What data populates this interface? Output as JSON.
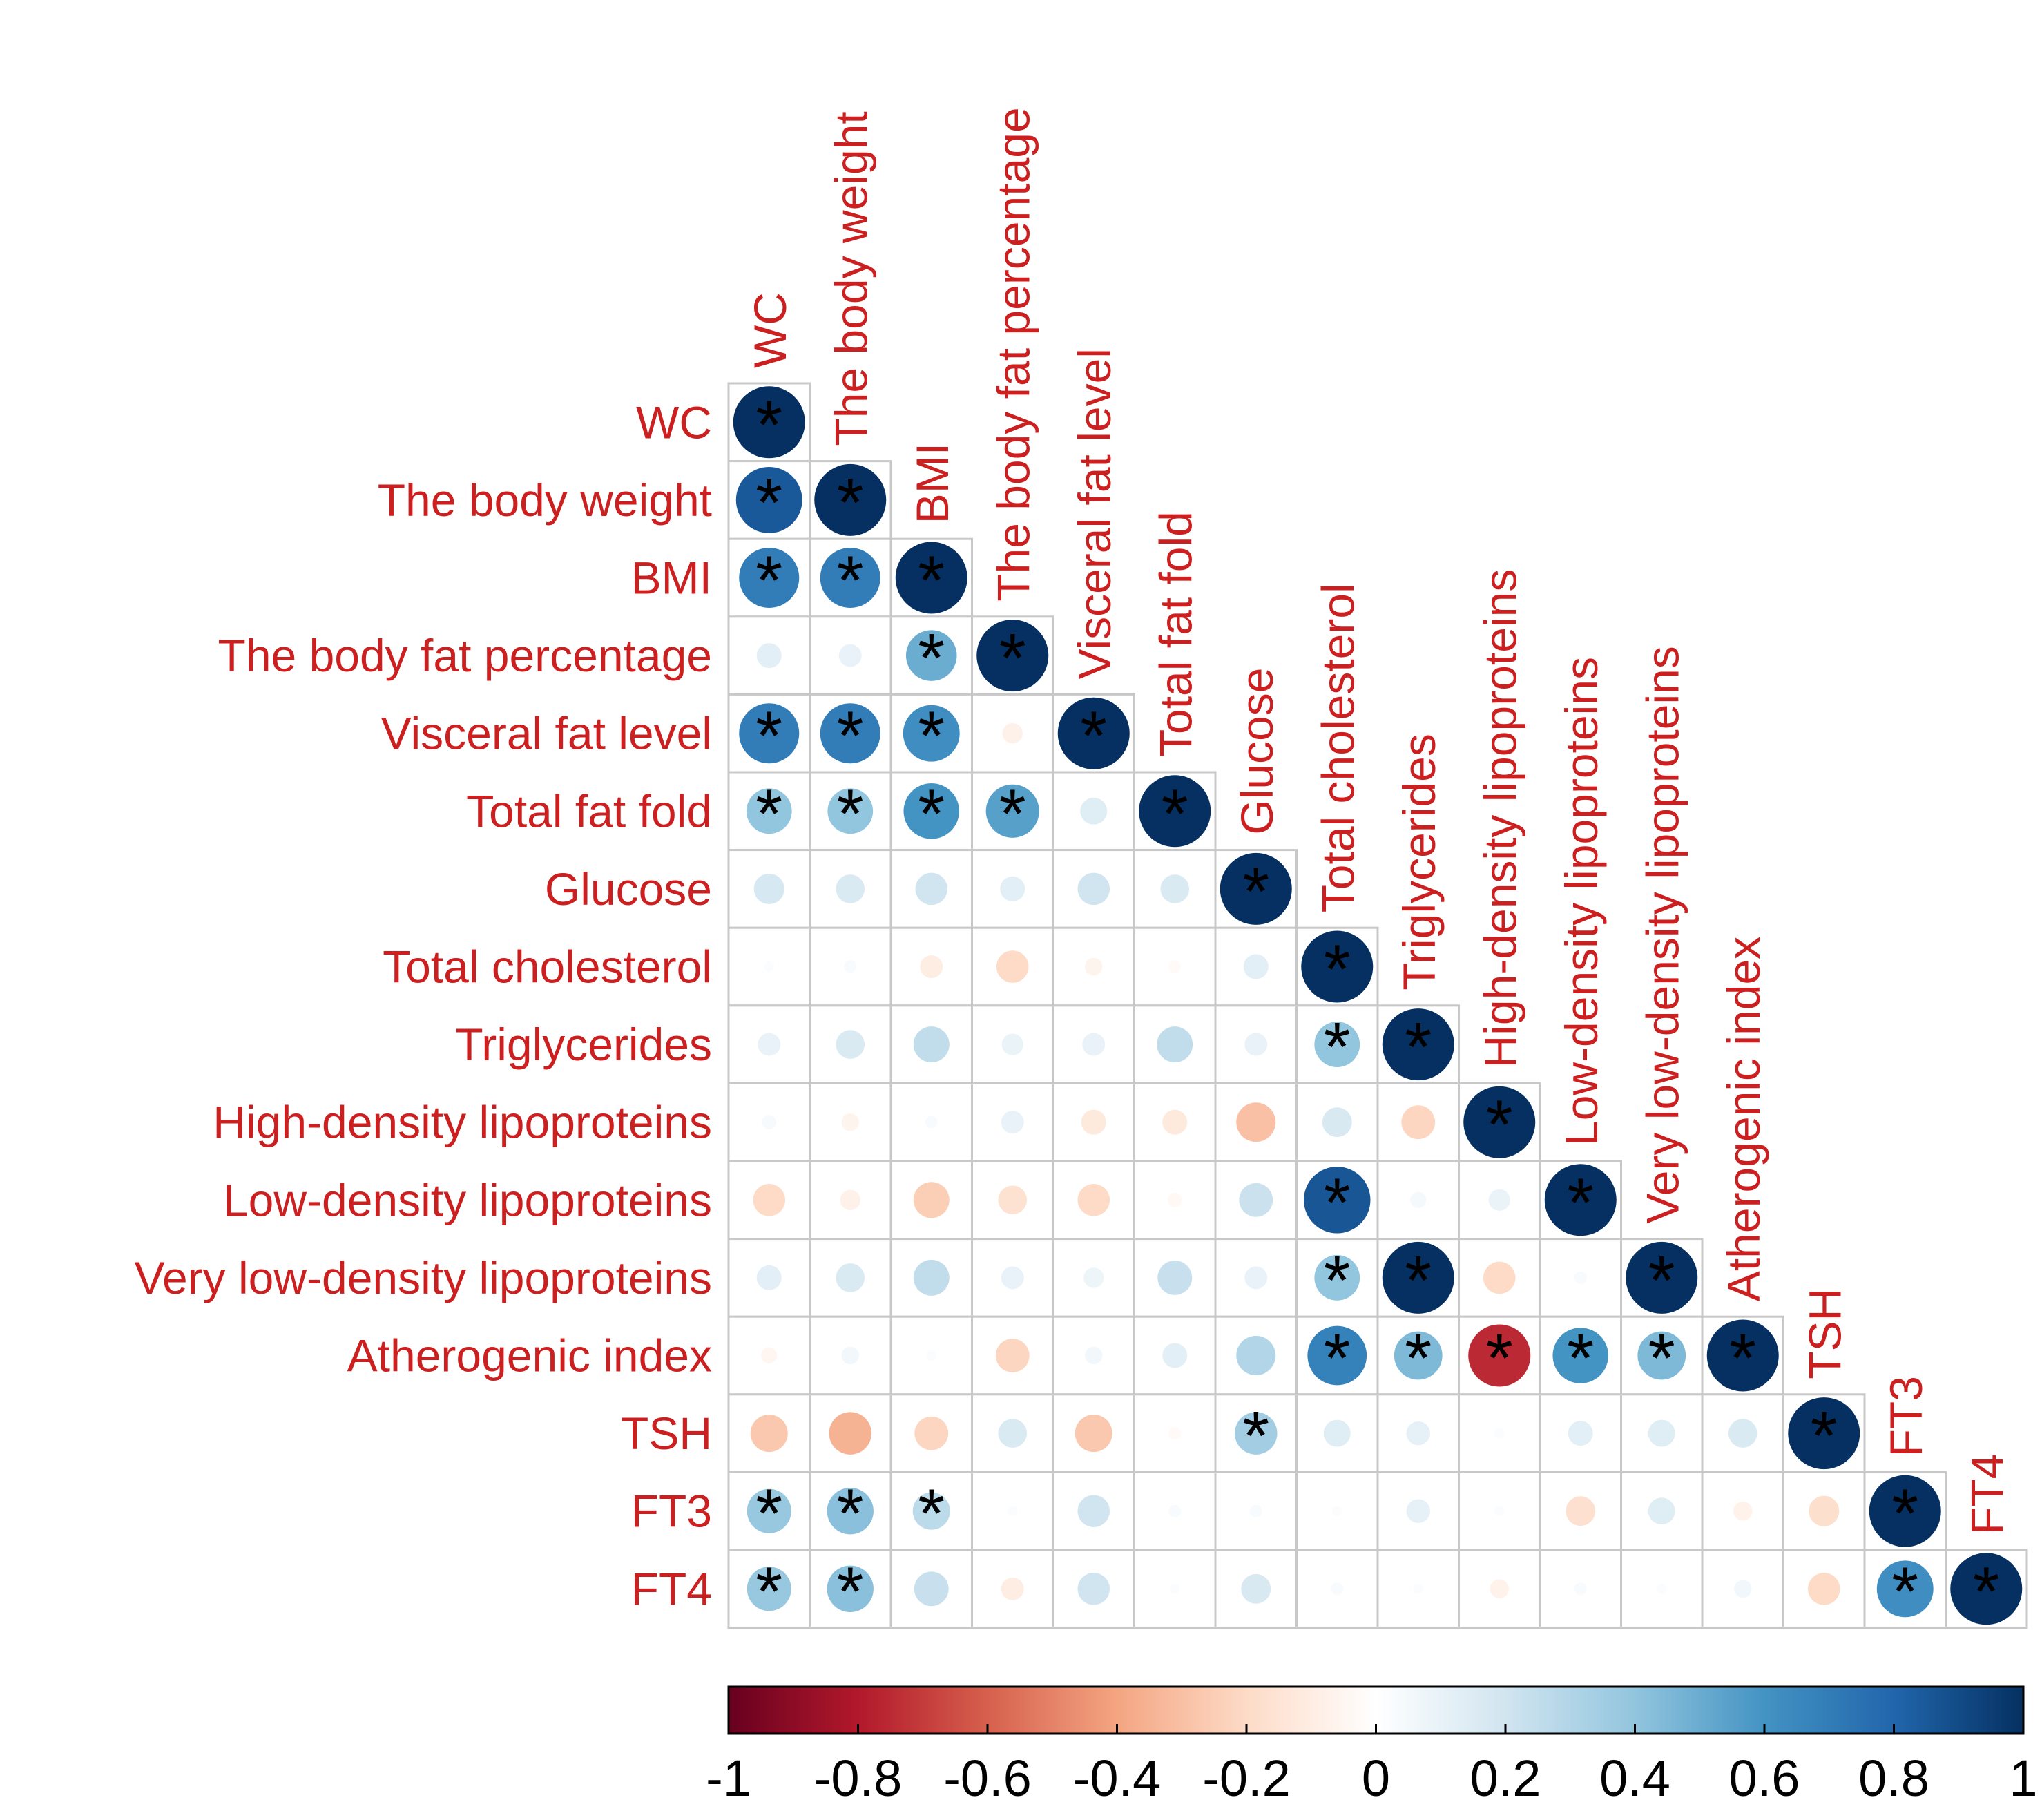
{
  "chart_data": {
    "type": "correlation-matrix",
    "title": "",
    "variables": [
      "WC",
      "The body weight",
      "BMI",
      "The body fat percentage",
      "Visceral fat level",
      "Total fat fold",
      "Glucose",
      "Total cholesterol",
      "Triglycerides",
      "High-density lipoproteins",
      "Low-density lipoproteins",
      "Very low-density lipoproteins",
      "Atherogenic index",
      "TSH",
      "FT3",
      "FT4"
    ],
    "matrix_lower": [
      [
        1
      ],
      [
        0.85,
        1
      ],
      [
        0.7,
        0.7,
        1
      ],
      [
        0.12,
        0.1,
        0.5,
        1
      ],
      [
        0.7,
        0.7,
        0.62,
        -0.08,
        1
      ],
      [
        0.4,
        0.4,
        0.6,
        0.55,
        0.14,
        1
      ],
      [
        0.18,
        0.16,
        0.2,
        0.12,
        0.2,
        0.16,
        1
      ],
      [
        0.02,
        0.03,
        -0.1,
        -0.2,
        -0.06,
        -0.03,
        0.12,
        1
      ],
      [
        0.1,
        0.16,
        0.25,
        0.09,
        0.1,
        0.25,
        0.1,
        0.4,
        1
      ],
      [
        0.04,
        -0.06,
        0.03,
        0.1,
        -0.12,
        -0.12,
        -0.3,
        0.17,
        -0.22,
        1
      ],
      [
        -0.2,
        -0.08,
        -0.25,
        -0.16,
        -0.2,
        -0.04,
        0.22,
        0.86,
        0.05,
        0.09,
        1
      ],
      [
        0.12,
        0.16,
        0.25,
        0.1,
        0.08,
        0.23,
        0.1,
        0.4,
        1,
        -0.2,
        0.03,
        1
      ],
      [
        -0.05,
        0.06,
        0.02,
        -0.22,
        0.06,
        0.12,
        0.3,
        0.68,
        0.45,
        -0.75,
        0.6,
        0.45,
        1
      ],
      [
        -0.27,
        -0.35,
        -0.22,
        0.16,
        -0.27,
        -0.03,
        0.35,
        0.14,
        0.11,
        0.02,
        0.12,
        0.14,
        0.16,
        1
      ],
      [
        0.38,
        0.42,
        0.27,
        0.02,
        0.2,
        0.03,
        0.03,
        0.02,
        0.11,
        0.02,
        -0.17,
        0.14,
        -0.07,
        -0.18,
        1
      ],
      [
        0.38,
        0.42,
        0.23,
        -0.1,
        0.2,
        0.02,
        0.17,
        0.03,
        0.02,
        -0.07,
        0.03,
        0.02,
        0.06,
        -0.2,
        0.62,
        1
      ]
    ],
    "significant_marker": "*",
    "significant_pairs": [
      [
        0,
        0
      ],
      [
        1,
        0
      ],
      [
        1,
        1
      ],
      [
        2,
        0
      ],
      [
        2,
        1
      ],
      [
        2,
        2
      ],
      [
        3,
        2
      ],
      [
        3,
        3
      ],
      [
        4,
        0
      ],
      [
        4,
        1
      ],
      [
        4,
        2
      ],
      [
        4,
        4
      ],
      [
        5,
        0
      ],
      [
        5,
        1
      ],
      [
        5,
        2
      ],
      [
        5,
        3
      ],
      [
        5,
        5
      ],
      [
        6,
        6
      ],
      [
        7,
        7
      ],
      [
        8,
        7
      ],
      [
        8,
        8
      ],
      [
        9,
        9
      ],
      [
        10,
        7
      ],
      [
        10,
        10
      ],
      [
        11,
        7
      ],
      [
        11,
        8
      ],
      [
        11,
        11
      ],
      [
        12,
        7
      ],
      [
        12,
        8
      ],
      [
        12,
        9
      ],
      [
        12,
        10
      ],
      [
        12,
        11
      ],
      [
        12,
        12
      ],
      [
        13,
        6
      ],
      [
        13,
        13
      ],
      [
        14,
        0
      ],
      [
        14,
        1
      ],
      [
        14,
        2
      ],
      [
        14,
        14
      ],
      [
        15,
        0
      ],
      [
        15,
        1
      ],
      [
        15,
        14
      ],
      [
        15,
        15
      ]
    ],
    "colorbar": {
      "range": [
        -1,
        1
      ],
      "ticks": [
        "-1",
        "-0.8",
        "-0.6",
        "-0.4",
        "-0.2",
        "0",
        "0.2",
        "0.4",
        "0.6",
        "0.8",
        "1"
      ],
      "colors": [
        "#67001f",
        "#b2182b",
        "#d6604d",
        "#f4a582",
        "#fddbc7",
        "#ffffff",
        "#d1e5f0",
        "#92c5de",
        "#4393c3",
        "#2166ac",
        "#053061"
      ],
      "position": "bottom"
    },
    "label_color": "#cc1f1f"
  }
}
